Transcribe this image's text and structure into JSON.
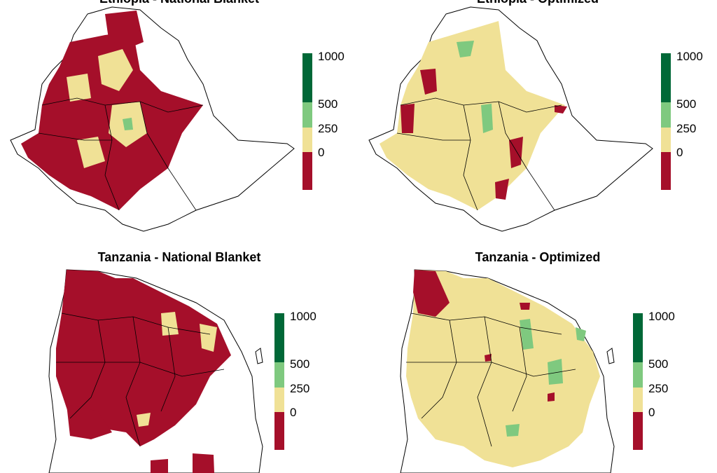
{
  "panels": [
    {
      "title": "Ethiopia - National Blanket",
      "country": "ethiopia",
      "scenario": "national-blanket"
    },
    {
      "title": "Ethiopia - Optimized",
      "country": "ethiopia",
      "scenario": "optimized"
    },
    {
      "title": "Tanzania - National Blanket",
      "country": "tanzania",
      "scenario": "national-blanket"
    },
    {
      "title": "Tanzania - Optimized",
      "country": "tanzania",
      "scenario": "optimized"
    }
  ],
  "legend": {
    "ticks": [
      "1000",
      "500",
      "250",
      "0"
    ],
    "classes": [
      {
        "range": "500-1000",
        "color": "#006837"
      },
      {
        "range": "250-500",
        "color": "#7fc97f"
      },
      {
        "range": "0-250",
        "color": "#f0e196"
      },
      {
        "range": "<0",
        "color": "#a50f2a"
      }
    ]
  },
  "colors": {
    "negative": "#a50f2a",
    "low": "#f0e196",
    "mid": "#7fc97f",
    "high": "#006837",
    "border": "#000000"
  }
}
